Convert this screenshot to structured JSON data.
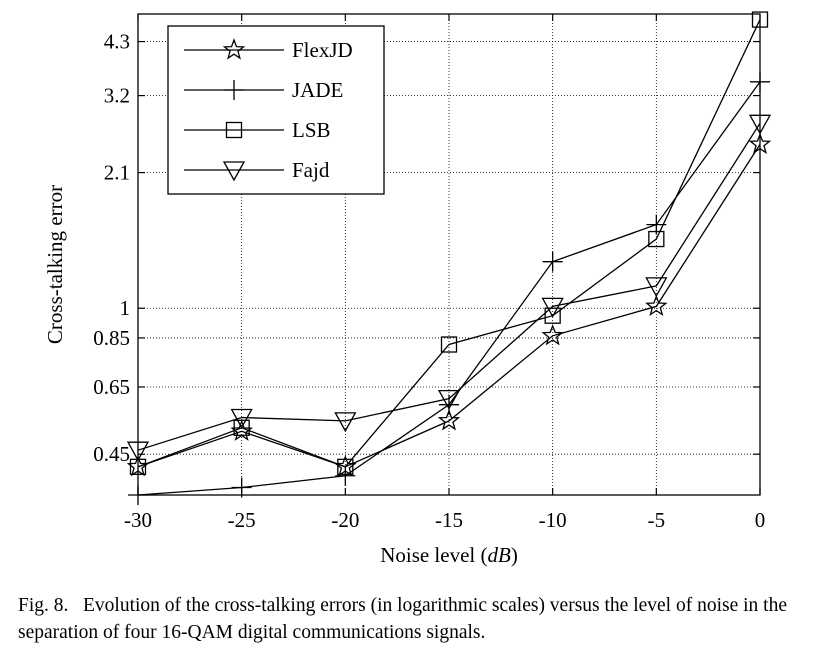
{
  "chart_data": {
    "type": "line",
    "xlabel_main": "Noise level (",
    "xlabel_unit": "dB",
    "xlabel_close": ")",
    "ylabel": "Cross-talking error",
    "y_scale": "log",
    "xlim": [
      -30,
      0
    ],
    "ylim": [
      0.36,
      5.0
    ],
    "x": [
      -30,
      -25,
      -20,
      -15,
      -10,
      -5,
      0
    ],
    "x_tick_labels": [
      "-30",
      "-25",
      "-20",
      "-15",
      "-10",
      "-5",
      "0"
    ],
    "y_ticks": [
      0.45,
      0.65,
      0.85,
      1,
      2.1,
      3.2,
      4.3
    ],
    "y_tick_labels": [
      "0.45",
      "0.65",
      "0.85",
      "1",
      "2.1",
      "3.2",
      "4.3"
    ],
    "grid": true,
    "legend_position": "top-left",
    "series": [
      {
        "name": "FlexJD",
        "marker": "star",
        "values": [
          0.42,
          0.51,
          0.42,
          0.54,
          0.86,
          1.01,
          2.45
        ]
      },
      {
        "name": "JADE",
        "marker": "plus",
        "values": [
          0.36,
          0.375,
          0.4,
          0.59,
          1.29,
          1.58,
          3.45
        ]
      },
      {
        "name": "LSB",
        "marker": "square",
        "values": [
          0.42,
          0.52,
          0.42,
          0.82,
          0.96,
          1.46,
          4.85
        ]
      },
      {
        "name": "Fajd",
        "marker": "triangle-down",
        "values": [
          0.46,
          0.55,
          0.54,
          0.61,
          1.01,
          1.13,
          2.75
        ]
      }
    ]
  },
  "caption": {
    "label": "Fig. 8.",
    "text": "Evolution of the cross-talking errors (in logarithmic scales) versus the level of noise in the separation of four 16-QAM digital communications signals."
  }
}
